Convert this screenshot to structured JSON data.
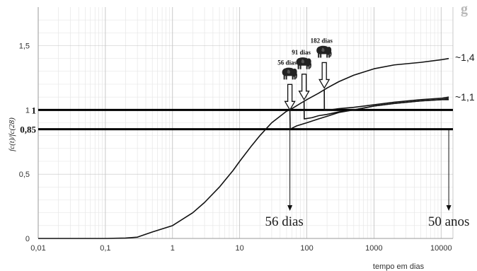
{
  "chart_data": {
    "type": "line",
    "title_fragment": "g",
    "ylabel": "fc(t)/fc(28)",
    "xlabel": "tempo em dias",
    "x_scale": "log",
    "xlim": [
      0.01,
      15000
    ],
    "ylim": [
      0,
      1.8
    ],
    "x_tick_labels": [
      "0,01",
      "0,1",
      "1",
      "10",
      "100",
      "1000",
      "10000"
    ],
    "y_ticks": [
      0,
      0.5,
      1,
      1.5
    ],
    "y_tick_labels": [
      "0",
      "0,5",
      "1",
      "1,5"
    ],
    "grid": "log-minor",
    "reference_lines": [
      {
        "y": 1.0,
        "label": "1"
      },
      {
        "y": 0.85,
        "label": "0,85"
      }
    ],
    "series": [
      {
        "x": [
          0.01,
          0.1,
          0.2,
          0.3,
          0.5,
          1,
          2,
          3,
          5,
          8,
          10,
          15,
          20,
          30,
          50,
          56,
          80,
          100,
          150,
          200,
          300,
          500,
          1000,
          2000,
          5000,
          10000,
          13000
        ],
        "y": [
          0,
          0,
          0.003,
          0.01,
          0.05,
          0.1,
          0.2,
          0.28,
          0.4,
          0.53,
          0.6,
          0.72,
          0.8,
          0.9,
          0.99,
          1.0,
          1.05,
          1.08,
          1.13,
          1.17,
          1.22,
          1.27,
          1.32,
          1.35,
          1.37,
          1.39,
          1.4
        ]
      },
      {
        "x": [
          56,
          56.5,
          70,
          100,
          150,
          200,
          300,
          500,
          1000,
          2000,
          5000,
          10000,
          13000
        ],
        "y": [
          1.0,
          0.85,
          0.875,
          0.9,
          0.93,
          0.95,
          0.98,
          1.0,
          1.03,
          1.05,
          1.07,
          1.08,
          1.09
        ]
      },
      {
        "x": [
          91,
          91.5,
          120,
          150,
          200,
          300,
          500,
          1000,
          2000,
          5000,
          10000,
          13000
        ],
        "y": [
          1.07,
          0.93,
          0.94,
          0.955,
          0.965,
          0.985,
          1.0,
          1.03,
          1.05,
          1.07,
          1.08,
          1.08
        ]
      },
      {
        "x": [
          182,
          182.5,
          220,
          300,
          500,
          1000,
          2000,
          5000,
          10000,
          13000
        ],
        "y": [
          1.16,
          1.0,
          1.0,
          1.01,
          1.02,
          1.04,
          1.06,
          1.08,
          1.09,
          1.1
        ]
      }
    ],
    "end_labels": [
      {
        "text": "~1,4",
        "y": 1.41
      },
      {
        "text": "~1,1",
        "y": 1.1
      }
    ],
    "load_ages": [
      {
        "label": "56 dias",
        "x": 56
      },
      {
        "label": "91 dias",
        "x": 91
      },
      {
        "label": "182 dias",
        "x": 182
      }
    ],
    "annotations": [
      {
        "text": "56 dias",
        "x": 56
      },
      {
        "text": "50 anos",
        "x": 13000
      }
    ]
  }
}
